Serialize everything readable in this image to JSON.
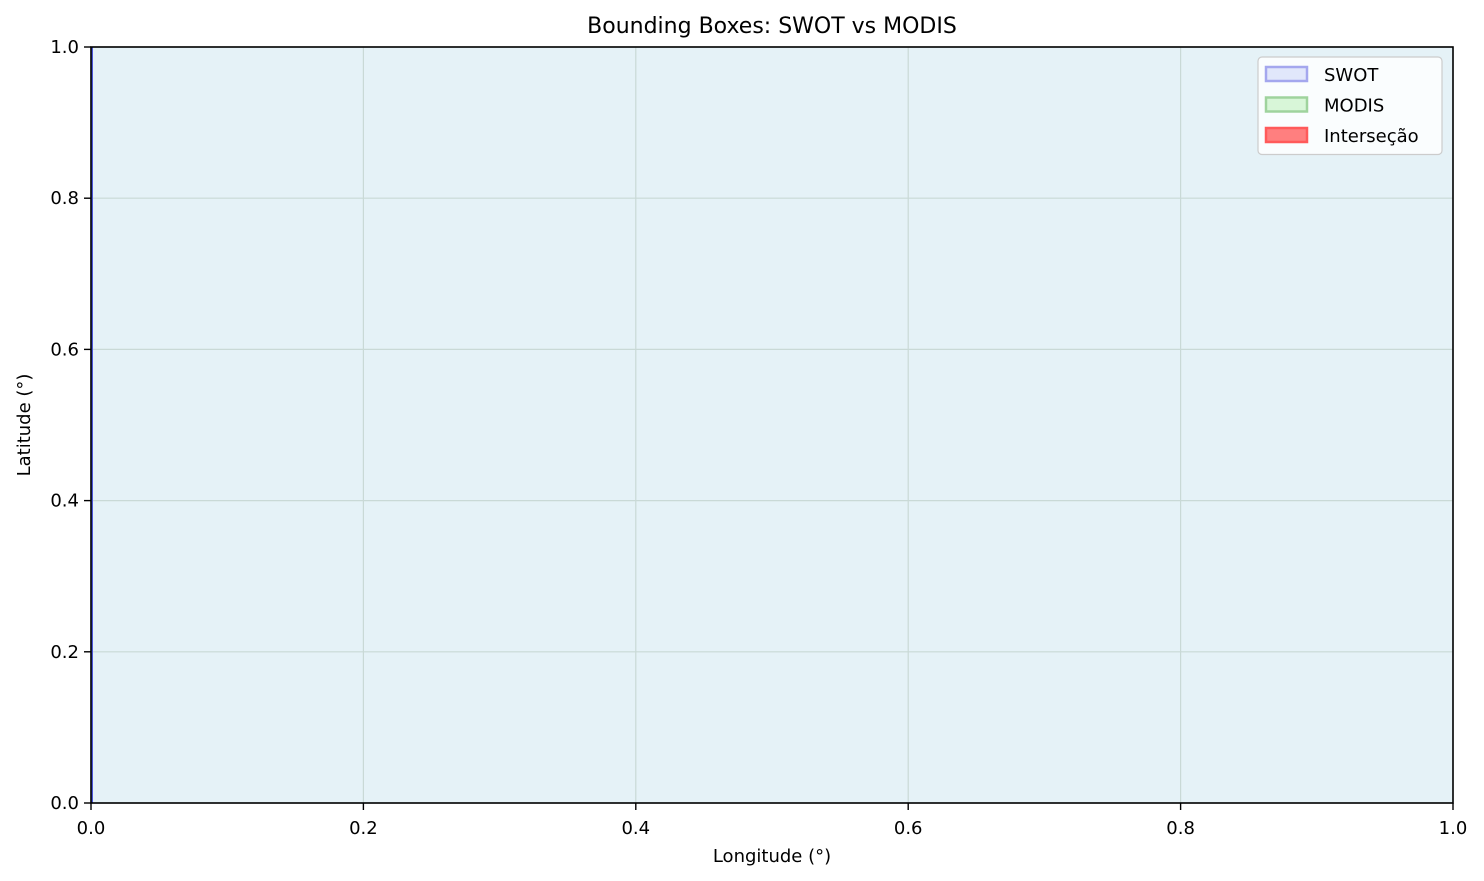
{
  "chart_data": {
    "type": "area",
    "title": "Bounding Boxes: SWOT vs MODIS",
    "xlabel": "Longitude (°)",
    "ylabel": "Latitude (°)",
    "xlim": [
      0.0,
      1.0
    ],
    "ylim": [
      0.0,
      1.0
    ],
    "xticks": [
      "0.0",
      "0.2",
      "0.4",
      "0.6",
      "0.8",
      "1.0"
    ],
    "yticks": [
      "0.0",
      "0.2",
      "0.4",
      "0.6",
      "0.8",
      "1.0"
    ],
    "grid": true,
    "legend_position": "top-right",
    "background_color": "#e5f2f7",
    "series": [
      {
        "name": "SWOT",
        "edge_color": "#a4a7ee",
        "fill_color": "#e1e7fb"
      },
      {
        "name": "MODIS",
        "edge_color": "#9fd39d",
        "fill_color": "#d8f6d8"
      },
      {
        "name": "Interseção",
        "edge_color": "#ff5a5a",
        "fill_color": "#ff7f7f"
      }
    ]
  }
}
